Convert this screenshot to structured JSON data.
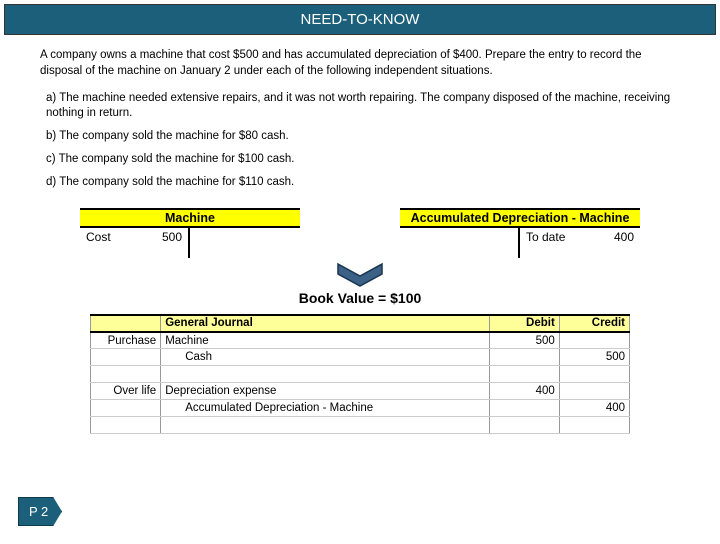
{
  "title": "NEED-TO-KNOW",
  "intro": "A company owns a machine that cost $500 and has accumulated depreciation of $400. Prepare the entry to record the disposal of the machine on January 2 under each of the following independent situations.",
  "scenarios": [
    "a)  The machine needed extensive repairs, and it was not worth repairing. The company disposed of the machine, receiving nothing in return.",
    "b)  The company sold the machine for $80 cash.",
    "c)  The company sold the machine for $100 cash.",
    "d)  The company sold the machine for $110 cash."
  ],
  "t_accounts": {
    "machine": {
      "title": "Machine",
      "left_label": "Cost",
      "left_value": "500"
    },
    "accum_dep": {
      "title": "Accumulated Depreciation - Machine",
      "right_label": "To date",
      "right_value": "400"
    }
  },
  "book_value": "Book Value = $100",
  "journal": {
    "head_acct": "General Journal",
    "head_debit": "Debit",
    "head_credit": "Credit",
    "rows": [
      {
        "date": "Purchase",
        "acct": "Machine",
        "indent": 0,
        "debit": "500",
        "credit": ""
      },
      {
        "date": "",
        "acct": "Cash",
        "indent": 1,
        "debit": "",
        "credit": "500"
      },
      {
        "date": "",
        "acct": "",
        "indent": 0,
        "debit": "",
        "credit": ""
      },
      {
        "date": "Over life",
        "acct": "Depreciation expense",
        "indent": 0,
        "debit": "400",
        "credit": ""
      },
      {
        "date": "",
        "acct": "Accumulated Depreciation - Machine",
        "indent": 1,
        "debit": "",
        "credit": "400"
      },
      {
        "date": "",
        "acct": "",
        "indent": 0,
        "debit": "",
        "credit": ""
      }
    ]
  },
  "page_tag": "P 2",
  "colors": {
    "title_bg": "#1c5f7a",
    "highlight_yellow": "#ffff00",
    "journal_header_yellow": "#ffff99",
    "arrow_fill": "#3b6186",
    "arrow_stroke": "#19354f"
  }
}
